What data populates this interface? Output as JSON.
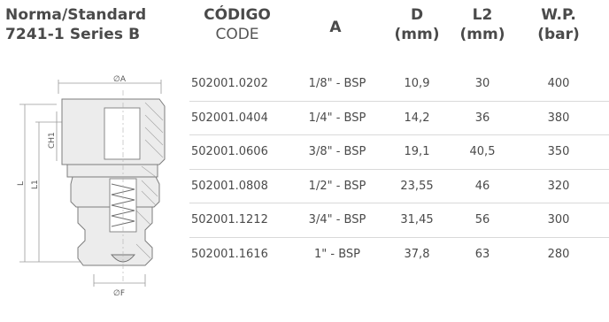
{
  "standard": {
    "line1": "Norma/Standard",
    "line2": "7241-1 Series B"
  },
  "headers": {
    "code_es": "CÓDIGO",
    "code_en": "CODE",
    "a": "A",
    "d": "D",
    "d_unit": "(mm)",
    "l2": "L2",
    "l2_unit": "(mm)",
    "wp": "W.P.",
    "wp_unit": "(bar)"
  },
  "drawing_labels": {
    "dia_a": "∅A",
    "dia_f": "∅F",
    "ch1": "CH1",
    "l1": "L1",
    "l": "L"
  },
  "rows": [
    {
      "code": "502001.0202",
      "a": "1/8\" - BSP",
      "d": "10,9",
      "l2": "30",
      "wp": "400"
    },
    {
      "code": "502001.0404",
      "a": "1/4\" - BSP",
      "d": "14,2",
      "l2": "36",
      "wp": "380"
    },
    {
      "code": "502001.0606",
      "a": "3/8\" - BSP",
      "d": "19,1",
      "l2": "40,5",
      "wp": "350"
    },
    {
      "code": "502001.0808",
      "a": "1/2\" - BSP",
      "d": "23,55",
      "l2": "46",
      "wp": "320"
    },
    {
      "code": "502001.1212",
      "a": "3/4\" - BSP",
      "d": "31,45",
      "l2": "56",
      "wp": "300"
    },
    {
      "code": "502001.1616",
      "a": "1\" - BSP",
      "d": "37,8",
      "l2": "63",
      "wp": "280"
    }
  ],
  "colors": {
    "text": "#4a4a4a",
    "divider": "#d9d9d9",
    "metal": "#e6e6e6",
    "outline": "#8a8a8a"
  }
}
